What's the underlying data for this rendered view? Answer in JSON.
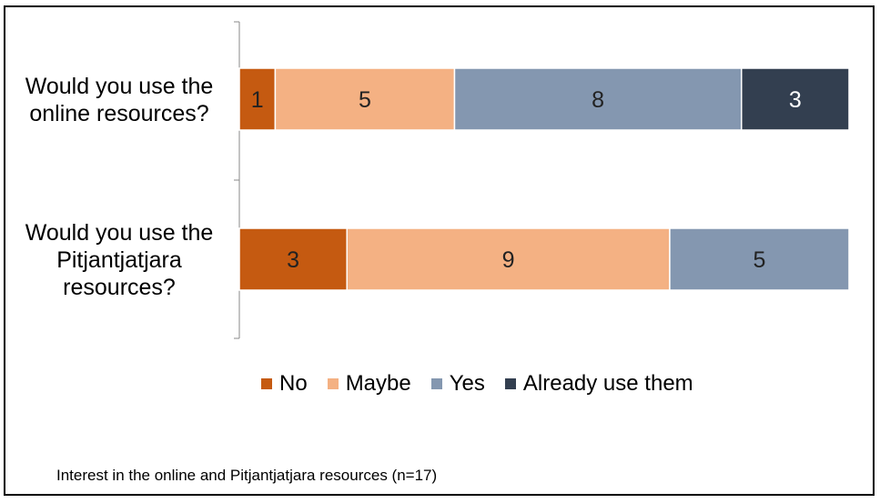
{
  "chart_data": {
    "type": "bar",
    "orientation": "horizontal",
    "stacked": true,
    "categories": [
      "Would you use the online resources?",
      "Would you use the Pitjantjatjara resources?"
    ],
    "category_lines": [
      [
        "Would you use the",
        "online resources?"
      ],
      [
        "Would you use the",
        "Pitjantjatjara",
        "resources?"
      ]
    ],
    "series": [
      {
        "name": "No",
        "values": [
          1,
          3
        ],
        "color": "#C55A11"
      },
      {
        "name": "Maybe",
        "values": [
          5,
          9
        ],
        "color": "#F4B183"
      },
      {
        "name": "Yes",
        "values": [
          8,
          5
        ],
        "color": "#8497B0"
      },
      {
        "name": "Already use them",
        "values": [
          3,
          0
        ],
        "color": "#333F50"
      }
    ],
    "xlim": [
      0,
      17
    ],
    "grid": false,
    "legend_position": "bottom",
    "data_labels": true
  },
  "caption": "Interest in the online and Pitjantjatjara resources (n=17)"
}
